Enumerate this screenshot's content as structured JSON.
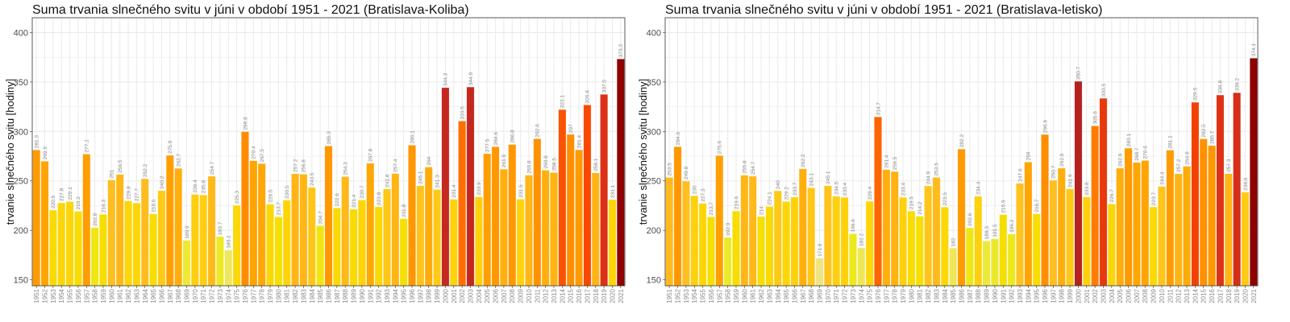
{
  "chart_data": [
    {
      "type": "bar",
      "title": "Suma trvania slnečného svitu v júni v období 1951 - 2021 (Bratislava-Koliba)",
      "xlabel": "",
      "ylabel": "trvanie slnečného svitu [hodiny]",
      "ylim": [
        144,
        415
      ],
      "yticks": [
        150,
        200,
        250,
        300,
        350,
        400
      ],
      "grid": true,
      "categories": [
        "1951",
        "1952",
        "1953",
        "1954",
        "1955",
        "1956",
        "1957",
        "1958",
        "1959",
        "1960",
        "1961",
        "1962",
        "1963",
        "1964",
        "1965",
        "1966",
        "1967",
        "1968",
        "1969",
        "1970",
        "1971",
        "1972",
        "1973",
        "1974",
        "1975",
        "1976",
        "1977",
        "1978",
        "1979",
        "1980",
        "1981",
        "1982",
        "1983",
        "1984",
        "1985",
        "1986",
        "1987",
        "1988",
        "1989",
        "1990",
        "1991",
        "1992",
        "1993",
        "1994",
        "1995",
        "1996",
        "1997",
        "1998",
        "1999",
        "2000",
        "2001",
        "2002",
        "2003",
        "2004",
        "2005",
        "2006",
        "2007",
        "2008",
        "2009",
        "2010",
        "2011",
        "2012",
        "2013",
        "2014",
        "2015",
        "2016",
        "2017",
        "2018",
        "2019",
        "2020",
        "2021"
      ],
      "values": [
        281.3,
        269.9,
        220.5,
        227.8,
        229.1,
        219.3,
        277.1,
        202.8,
        216.3,
        251,
        256.5,
        229.8,
        227.7,
        252.2,
        216.6,
        240.2,
        275.9,
        262.7,
        189.9,
        236.4,
        235.8,
        254.7,
        193.7,
        180.1,
        225.3,
        299.8,
        270.4,
        267.5,
        226.5,
        213.7,
        230.5,
        257.2,
        256.8,
        243.5,
        204.7,
        285.3,
        222.6,
        254.3,
        221.4,
        230.7,
        267.8,
        223.8,
        241.8,
        257.4,
        211.8,
        286.1,
        245.1,
        264,
        241.3,
        344.3,
        231.4,
        310.5,
        344.9,
        233.9,
        277.5,
        284.6,
        261.9,
        286.8,
        231.5,
        255.8,
        292.6,
        260.8,
        258.5,
        322.1,
        297,
        281.4,
        326.8,
        258.1,
        337.5,
        231.1,
        373.3
      ]
    },
    {
      "type": "bar",
      "title": "Suma trvania slnečného svitu v júni v období 1951 - 2021 (Bratislava-letisko)",
      "xlabel": "",
      "ylabel": "trvanie slnečného svitu [hodiny]",
      "ylim": [
        144,
        415
      ],
      "yticks": [
        150,
        200,
        250,
        300,
        350,
        400
      ],
      "grid": true,
      "categories": [
        "1951",
        "1952",
        "1953",
        "1954",
        "1955",
        "1956",
        "1957",
        "1958",
        "1959",
        "1960",
        "1961",
        "1962",
        "1963",
        "1964",
        "1965",
        "1966",
        "1967",
        "1968",
        "1969",
        "1970",
        "1971",
        "1972",
        "1973",
        "1974",
        "1975",
        "1976",
        "1977",
        "1978",
        "1979",
        "1980",
        "1981",
        "1982",
        "1983",
        "1984",
        "1985",
        "1986",
        "1987",
        "1988",
        "1989",
        "1990",
        "1991",
        "1992",
        "1993",
        "1994",
        "1995",
        "1996",
        "1997",
        "1998",
        "1999",
        "2000",
        "2001",
        "2002",
        "2003",
        "2004",
        "2005",
        "2006",
        "2007",
        "2008",
        "2009",
        "2010",
        "2011",
        "2012",
        "2013",
        "2014",
        "2015",
        "2016",
        "2017",
        "2018",
        "2019",
        "2020",
        "2021"
      ],
      "values": [
        253.5,
        284.6,
        249.8,
        235,
        227.3,
        213.7,
        275.6,
        192.9,
        219.6,
        255.8,
        254.7,
        214,
        224.1,
        240,
        229.2,
        233.7,
        262.2,
        243.1,
        171.9,
        245.1,
        234.5,
        233.4,
        196.6,
        182.2,
        229.4,
        314.7,
        261.4,
        259.5,
        233.4,
        219.5,
        214.2,
        244.9,
        253.5,
        223.5,
        182,
        282.2,
        202.6,
        234.4,
        189.3,
        191.5,
        215.9,
        196.2,
        247.6,
        269,
        216.7,
        296.9,
        250.7,
        262.9,
        241.9,
        350.7,
        233.8,
        305.6,
        333.5,
        226.7,
        262.9,
        283.1,
        268.7,
        270.6,
        223.7,
        244.4,
        281.1,
        257.2,
        264.8,
        329.5,
        292.5,
        285.7,
        336.8,
        257.3,
        339.2,
        238.6,
        374.1
      ]
    }
  ],
  "colors": {
    "scale": [
      [
        "170",
        "#efe48a"
      ],
      [
        "195",
        "#ecea1e"
      ],
      [
        "215",
        "#f6df00"
      ],
      [
        "232",
        "#ffd30a"
      ],
      [
        "250",
        "#ffbf22"
      ],
      [
        "270",
        "#ffa400"
      ],
      [
        "300",
        "#ff8c00"
      ],
      [
        "312",
        "#ff6a00"
      ],
      [
        "328",
        "#f84400"
      ],
      [
        "340",
        "#d32c1c"
      ],
      [
        "350",
        "#b52222"
      ],
      [
        "375",
        "#8b0000"
      ]
    ],
    "grid": "#ebebeb",
    "text": "#777777"
  }
}
